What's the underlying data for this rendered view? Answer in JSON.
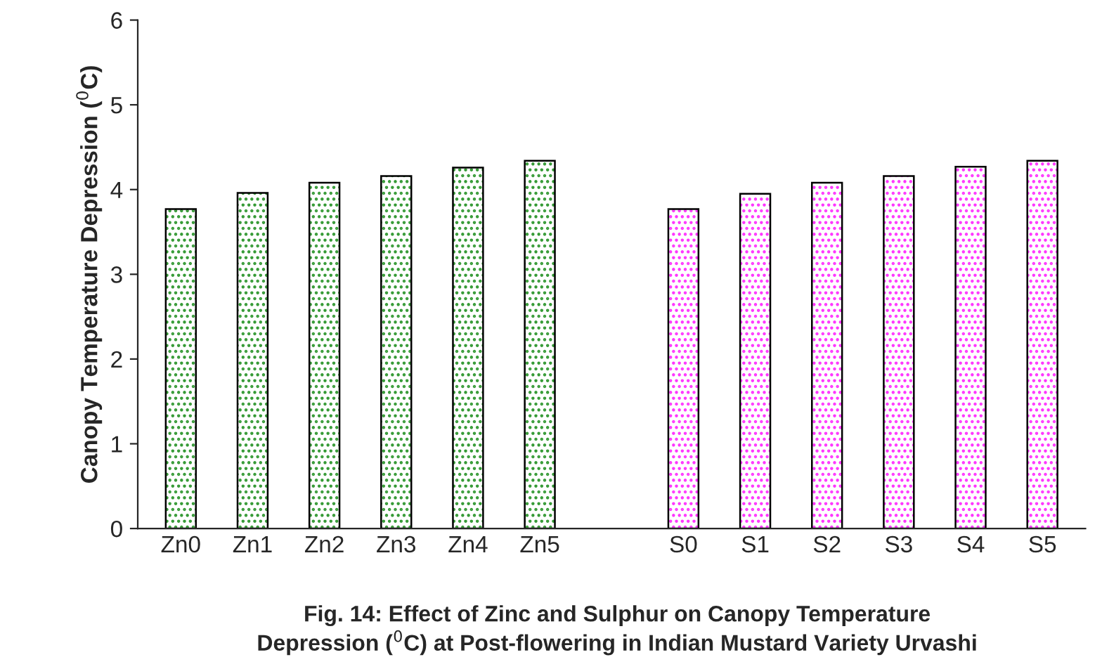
{
  "chart_data": {
    "type": "bar",
    "title": "Fig. 14: Effect of Zinc and Sulphur on Canopy Temperature\nDepression ($^{0}$C) at Post-flowering in Indian Mustard Variety Urvashi",
    "ylabel": "Canopy Temperature Depression ($^{0}$C)",
    "categories": [
      "Zn0",
      "Zn1",
      "Zn2",
      "Zn3",
      "Zn4",
      "Zn5",
      null,
      "S0",
      "S1",
      "S2",
      "S3",
      "S4",
      "S5"
    ],
    "values": [
      3.77,
      3.96,
      4.08,
      4.16,
      4.26,
      4.34,
      null,
      3.77,
      3.95,
      4.08,
      4.16,
      4.27,
      4.34
    ],
    "colors": [
      "#339933",
      "#339933",
      "#339933",
      "#339933",
      "#339933",
      "#339933",
      null,
      "#ff33ff",
      "#ff33ff",
      "#ff33ff",
      "#ff33ff",
      "#ff33ff",
      "#ff33ff"
    ],
    "ylim": [
      0,
      6
    ],
    "yticks": [
      0,
      1,
      2,
      3,
      4,
      5,
      6
    ],
    "grid": false,
    "legend": false
  }
}
